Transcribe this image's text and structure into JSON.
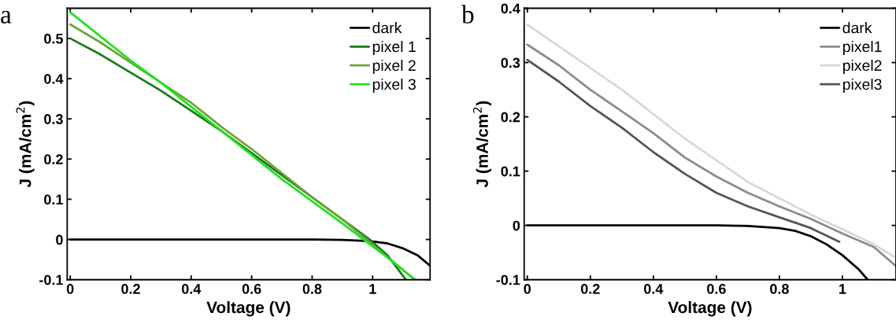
{
  "chart_data": [
    {
      "type": "line",
      "annotations": [
        "a"
      ],
      "xlabel": "Voltage (V)",
      "ylabel": "J (mA/cm$^{2}$)",
      "xlim": [
        -0.01,
        1.19
      ],
      "ylim": [
        -0.1,
        0.575
      ],
      "xticks": [
        0,
        0.2,
        0.4,
        0.6,
        0.8,
        1
      ],
      "yticks": [
        -0.1,
        0,
        0.1,
        0.2,
        0.3,
        0.4,
        0.5
      ],
      "legend": "top right",
      "grid": false,
      "series": [
        {
          "name": "dark",
          "color": "#000000",
          "x": [
            0,
            0.2,
            0.4,
            0.6,
            0.8,
            0.9,
            0.96,
            1.0,
            1.05,
            1.1,
            1.15,
            1.19
          ],
          "values": [
            0,
            0,
            0,
            0,
            0,
            -0.001,
            -0.003,
            -0.005,
            -0.01,
            -0.022,
            -0.04,
            -0.065
          ]
        },
        {
          "name": "pixel 1",
          "color": "#1a7a1a",
          "x": [
            0,
            0.1,
            0.2,
            0.3,
            0.4,
            0.5,
            0.6,
            0.7,
            0.8,
            0.9,
            0.99,
            1.05,
            1.11
          ],
          "values": [
            0.5,
            0.46,
            0.415,
            0.37,
            0.32,
            0.27,
            0.215,
            0.16,
            0.105,
            0.05,
            0,
            -0.04,
            -0.1
          ]
        },
        {
          "name": "pixel 2",
          "color": "#6aa63a",
          "x": [
            0,
            0.1,
            0.2,
            0.3,
            0.4,
            0.5,
            0.6,
            0.7,
            0.8,
            0.9,
            0.98,
            1.05,
            1.14
          ],
          "values": [
            0.535,
            0.49,
            0.44,
            0.39,
            0.34,
            0.28,
            0.225,
            0.165,
            0.105,
            0.05,
            0,
            -0.045,
            -0.1
          ]
        },
        {
          "name": "pixel 3",
          "color": "#22e022",
          "x": [
            0,
            0.1,
            0.2,
            0.3,
            0.4,
            0.5,
            0.6,
            0.7,
            0.8,
            0.9,
            0.97,
            1.05,
            1.14
          ],
          "values": [
            0.565,
            0.505,
            0.445,
            0.39,
            0.33,
            0.27,
            0.21,
            0.15,
            0.095,
            0.04,
            0,
            -0.045,
            -0.1
          ]
        }
      ]
    },
    {
      "type": "line",
      "annotations": [
        "b"
      ],
      "xlabel": "Voltage (V)",
      "ylabel": "J (mA/cm$^{2}$)",
      "xlim": [
        -0.01,
        1.17
      ],
      "ylim": [
        -0.1,
        0.4
      ],
      "xticks": [
        0,
        0.2,
        0.4,
        0.6,
        0.8,
        1
      ],
      "yticks": [
        -0.1,
        0,
        0.1,
        0.2,
        0.3,
        0.4
      ],
      "legend": "top right",
      "grid": false,
      "series": [
        {
          "name": "dark",
          "color": "#000000",
          "x": [
            0,
            0.2,
            0.4,
            0.6,
            0.7,
            0.8,
            0.85,
            0.9,
            0.95,
            1.0,
            1.05,
            1.08
          ],
          "values": [
            0,
            0,
            0,
            0,
            -0.001,
            -0.005,
            -0.01,
            -0.02,
            -0.035,
            -0.055,
            -0.08,
            -0.1
          ]
        },
        {
          "name": "pixel1",
          "color": "#8c8c8c",
          "x": [
            0,
            0.1,
            0.2,
            0.3,
            0.4,
            0.5,
            0.6,
            0.7,
            0.8,
            0.9,
            1.0,
            1.1,
            1.17
          ],
          "values": [
            0.333,
            0.295,
            0.25,
            0.21,
            0.17,
            0.125,
            0.09,
            0.06,
            0.035,
            0.012,
            -0.015,
            -0.04,
            -0.075
          ]
        },
        {
          "name": "pixel2",
          "color": "#d8d8d4",
          "x": [
            0,
            0.1,
            0.2,
            0.3,
            0.4,
            0.5,
            0.6,
            0.7,
            0.8,
            0.9,
            1.0,
            1.1,
            1.17
          ],
          "values": [
            0.37,
            0.33,
            0.29,
            0.25,
            0.205,
            0.16,
            0.12,
            0.08,
            0.05,
            0.02,
            -0.007,
            -0.035,
            -0.06
          ]
        },
        {
          "name": "pixel3",
          "color": "#555555",
          "x": [
            0,
            0.1,
            0.2,
            0.3,
            0.4,
            0.5,
            0.6,
            0.7,
            0.8,
            0.9,
            0.99
          ],
          "values": [
            0.305,
            0.265,
            0.22,
            0.18,
            0.135,
            0.095,
            0.06,
            0.035,
            0.015,
            -0.005,
            -0.03
          ]
        }
      ]
    }
  ]
}
